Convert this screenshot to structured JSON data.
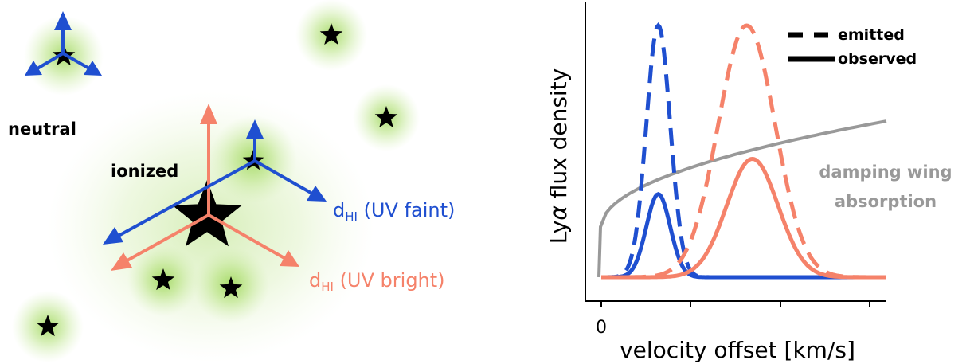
{
  "colors": {
    "faint": "#1f4fd0",
    "bright": "#f5826a",
    "damping": "#999999",
    "glow": "#8ccf3c",
    "star": "#000000"
  },
  "left_panel": {
    "label_neutral": "neutral",
    "label_ionized": "ionized",
    "label_faint_prefix": "d",
    "label_faint_sub": "HI",
    "label_faint_suffix": " (UV faint)",
    "label_bright_prefix": "d",
    "label_bright_sub": "HI",
    "label_bright_suffix": " (UV bright)",
    "icons": [
      "star-icon",
      "arrow-icon",
      "glow-halo"
    ]
  },
  "right_panel": {
    "ylabel_prefix": "Ly",
    "ylabel_greek": "α",
    "ylabel_suffix": " flux density",
    "xlabel": "velocity offset [km/s]",
    "x_tick_zero": "0",
    "legend_emitted": "emitted",
    "legend_observed": "observed",
    "damping_line1": "damping wing",
    "damping_line2": "absorption"
  },
  "chart_data": {
    "type": "line",
    "xlabel": "velocity offset [km/s]",
    "ylabel": "Lyα flux density",
    "x_ticks": [
      "0",
      "",
      "",
      ""
    ],
    "xlim": [
      -0.04,
      1.0
    ],
    "ylim": [
      0,
      1.0
    ],
    "series": [
      {
        "name": "emitted",
        "source": "UV faint",
        "style": "dashed",
        "color": "#1f4fd0",
        "peak_x": 0.2,
        "peak_y": 1.0,
        "sigma": 0.042
      },
      {
        "name": "observed",
        "source": "UV faint",
        "style": "solid",
        "color": "#1f4fd0",
        "peak_x": 0.2,
        "peak_y": 0.33,
        "sigma": 0.042
      },
      {
        "name": "emitted",
        "source": "UV bright",
        "style": "dashed",
        "color": "#f5826a",
        "peak_x": 0.51,
        "peak_y": 1.0,
        "sigma": 0.1
      },
      {
        "name": "observed",
        "source": "UV bright",
        "style": "solid",
        "color": "#f5826a",
        "peak_x": 0.53,
        "peak_y": 0.47,
        "sigma": 0.09
      }
    ],
    "damping_wing": {
      "color": "#999999",
      "start_x": 0.0,
      "y_at_start": 0.2,
      "y_at_end": 0.62
    }
  }
}
